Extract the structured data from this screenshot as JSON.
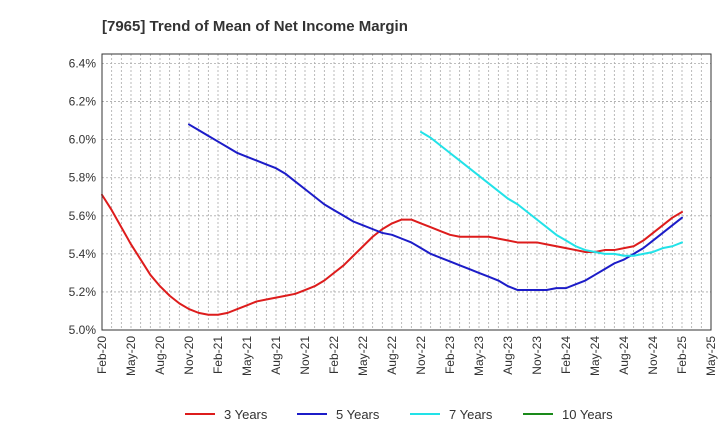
{
  "chart_data": {
    "type": "line",
    "title": "[7965]  Trend of Mean of Net Income Margin",
    "xlabel": "",
    "ylabel": "",
    "x_ticks": [
      "Feb-20",
      "May-20",
      "Aug-20",
      "Nov-20",
      "Feb-21",
      "May-21",
      "Aug-21",
      "Nov-21",
      "Feb-22",
      "May-22",
      "Aug-22",
      "Nov-22",
      "Feb-23",
      "May-23",
      "Aug-23",
      "Nov-23",
      "Feb-24",
      "May-24",
      "Aug-24",
      "Nov-24",
      "Feb-25",
      "May-25"
    ],
    "y_ticks": [
      "5.0%",
      "5.2%",
      "5.4%",
      "5.6%",
      "5.8%",
      "6.0%",
      "6.2%",
      "6.4%"
    ],
    "ylim": [
      5.0,
      6.45
    ],
    "grid": true,
    "legend_position": "bottom",
    "series": [
      {
        "name": "3 Years",
        "color": "#dd1c1c",
        "x": [
          "Feb-20",
          "Mar-20",
          "Apr-20",
          "May-20",
          "Jun-20",
          "Jul-20",
          "Aug-20",
          "Sep-20",
          "Oct-20",
          "Nov-20",
          "Dec-20",
          "Jan-21",
          "Feb-21",
          "Mar-21",
          "Apr-21",
          "May-21",
          "Jun-21",
          "Jul-21",
          "Aug-21",
          "Sep-21",
          "Oct-21",
          "Nov-21",
          "Dec-21",
          "Jan-22",
          "Feb-22",
          "Mar-22",
          "Apr-22",
          "May-22",
          "Jun-22",
          "Jul-22",
          "Aug-22",
          "Sep-22",
          "Oct-22",
          "Nov-22",
          "Dec-22",
          "Jan-23",
          "Feb-23",
          "Mar-23",
          "Apr-23",
          "May-23",
          "Jun-23",
          "Jul-23",
          "Aug-23",
          "Sep-23",
          "Oct-23",
          "Nov-23",
          "Dec-23",
          "Jan-24",
          "Feb-24",
          "Mar-24",
          "Apr-24",
          "May-24",
          "Jun-24",
          "Jul-24",
          "Aug-24",
          "Sep-24",
          "Oct-24",
          "Nov-24",
          "Dec-24",
          "Jan-25",
          "Feb-25"
        ],
        "values": [
          5.71,
          5.63,
          5.54,
          5.45,
          5.37,
          5.29,
          5.23,
          5.18,
          5.14,
          5.11,
          5.09,
          5.08,
          5.08,
          5.09,
          5.11,
          5.13,
          5.15,
          5.16,
          5.17,
          5.18,
          5.19,
          5.21,
          5.23,
          5.26,
          5.3,
          5.34,
          5.39,
          5.44,
          5.49,
          5.53,
          5.56,
          5.58,
          5.58,
          5.56,
          5.54,
          5.52,
          5.5,
          5.49,
          5.49,
          5.49,
          5.49,
          5.48,
          5.47,
          5.46,
          5.46,
          5.46,
          5.45,
          5.44,
          5.43,
          5.42,
          5.41,
          5.41,
          5.42,
          5.42,
          5.43,
          5.44,
          5.47,
          5.51,
          5.55,
          5.59,
          5.62
        ]
      },
      {
        "name": "5 Years",
        "color": "#1c1cc8",
        "x": [
          "Nov-20",
          "Dec-20",
          "Jan-21",
          "Feb-21",
          "Mar-21",
          "Apr-21",
          "May-21",
          "Jun-21",
          "Jul-21",
          "Aug-21",
          "Sep-21",
          "Oct-21",
          "Nov-21",
          "Dec-21",
          "Jan-22",
          "Feb-22",
          "Mar-22",
          "Apr-22",
          "May-22",
          "Jun-22",
          "Jul-22",
          "Aug-22",
          "Sep-22",
          "Oct-22",
          "Nov-22",
          "Dec-22",
          "Jan-23",
          "Feb-23",
          "Mar-23",
          "Apr-23",
          "May-23",
          "Jun-23",
          "Jul-23",
          "Aug-23",
          "Sep-23",
          "Oct-23",
          "Nov-23",
          "Dec-23",
          "Jan-24",
          "Feb-24",
          "Mar-24",
          "Apr-24",
          "May-24",
          "Jun-24",
          "Jul-24",
          "Aug-24",
          "Sep-24",
          "Oct-24",
          "Nov-24",
          "Dec-24",
          "Jan-25",
          "Feb-25"
        ],
        "values": [
          6.08,
          6.05,
          6.02,
          5.99,
          5.96,
          5.93,
          5.91,
          5.89,
          5.87,
          5.85,
          5.82,
          5.78,
          5.74,
          5.7,
          5.66,
          5.63,
          5.6,
          5.57,
          5.55,
          5.53,
          5.51,
          5.5,
          5.48,
          5.46,
          5.43,
          5.4,
          5.38,
          5.36,
          5.34,
          5.32,
          5.3,
          5.28,
          5.26,
          5.23,
          5.21,
          5.21,
          5.21,
          5.21,
          5.22,
          5.22,
          5.24,
          5.26,
          5.29,
          5.32,
          5.35,
          5.37,
          5.4,
          5.43,
          5.47,
          5.51,
          5.55,
          5.59
        ]
      },
      {
        "name": "7 Years",
        "color": "#22e2e8",
        "x": [
          "Nov-22",
          "Dec-22",
          "Jan-23",
          "Feb-23",
          "Mar-23",
          "Apr-23",
          "May-23",
          "Jun-23",
          "Jul-23",
          "Aug-23",
          "Sep-23",
          "Oct-23",
          "Nov-23",
          "Dec-23",
          "Jan-24",
          "Feb-24",
          "Mar-24",
          "Apr-24",
          "May-24",
          "Jun-24",
          "Jul-24",
          "Aug-24",
          "Sep-24",
          "Oct-24",
          "Nov-24",
          "Dec-24",
          "Jan-25",
          "Feb-25"
        ],
        "values": [
          6.04,
          6.01,
          5.97,
          5.93,
          5.89,
          5.85,
          5.81,
          5.77,
          5.73,
          5.69,
          5.66,
          5.62,
          5.58,
          5.54,
          5.5,
          5.47,
          5.44,
          5.42,
          5.41,
          5.4,
          5.4,
          5.39,
          5.39,
          5.4,
          5.41,
          5.43,
          5.44,
          5.46
        ]
      },
      {
        "name": "10 Years",
        "color": "#1a8a1a",
        "x": [],
        "values": []
      }
    ]
  }
}
